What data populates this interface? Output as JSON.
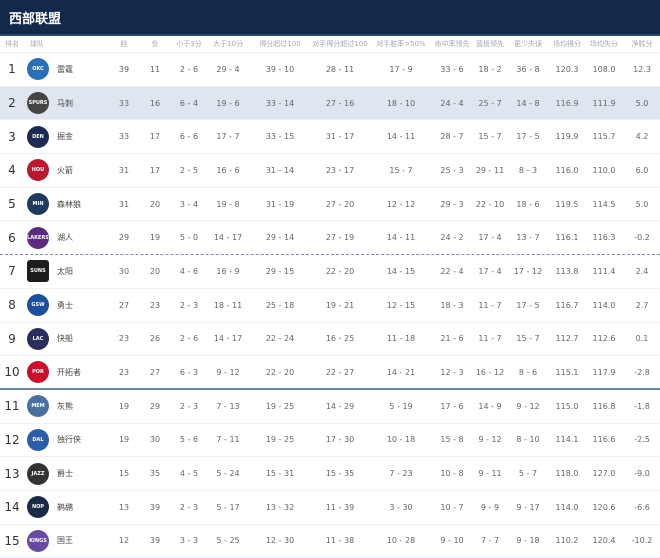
{
  "header": {
    "title": "西部联盟"
  },
  "columns": [
    "排名",
    "球队",
    "胜",
    "负",
    "小于3分",
    "大于10分",
    "得分超过100",
    "对手得分超过100",
    "对手胜率>50%",
    "命中率领先",
    "篮板领先",
    "更少失误",
    "场均得分",
    "场均失分",
    "净胜分"
  ],
  "highlight_color": "#dfe6ef",
  "header_color": "#13294b",
  "rows": [
    {
      "rank": "1",
      "team": "雷霆",
      "logo": {
        "mark": "OKC",
        "color": "#2a6fb5"
      },
      "w": "39",
      "l": "11",
      "c1": "2 - 6",
      "c2": "29 - 4",
      "c3": "39 - 10",
      "c4": "28 - 11",
      "c5": "17 - 9",
      "c6": "33 - 6",
      "c7": "18 - 2",
      "c8": "36 - 8",
      "ppg": "120.3",
      "opp": "108.0",
      "net": "12.3"
    },
    {
      "rank": "2",
      "team": "马刺",
      "logo": {
        "mark": "SPURS",
        "color": "#444"
      },
      "w": "33",
      "l": "16",
      "c1": "6 - 4",
      "c2": "19 - 6",
      "c3": "33 - 14",
      "c4": "27 - 16",
      "c5": "18 - 10",
      "c6": "24 - 4",
      "c7": "25 - 7",
      "c8": "14 - 8",
      "ppg": "116.9",
      "opp": "111.9",
      "net": "5.0"
    },
    {
      "rank": "3",
      "team": "掘金",
      "logo": {
        "mark": "DEN",
        "color": "#1d2b52"
      },
      "w": "33",
      "l": "17",
      "c1": "6 - 6",
      "c2": "17 - 7",
      "c3": "33 - 15",
      "c4": "31 - 17",
      "c5": "14 - 11",
      "c6": "28 - 7",
      "c7": "15 - 7",
      "c8": "17 - 5",
      "ppg": "119.9",
      "opp": "115.7",
      "net": "4.2"
    },
    {
      "rank": "4",
      "team": "火箭",
      "logo": {
        "mark": "HOU",
        "color": "#b8192f"
      },
      "w": "31",
      "l": "17",
      "c1": "2 - 5",
      "c2": "16 - 6",
      "c3": "31 - 14",
      "c4": "23 - 17",
      "c5": "15 - 7",
      "c6": "25 - 3",
      "c7": "29 - 11",
      "c8": "8 - 3",
      "ppg": "116.0",
      "opp": "110.0",
      "net": "6.0"
    },
    {
      "rank": "5",
      "team": "森林狼",
      "logo": {
        "mark": "MIN",
        "color": "#1f3b5c"
      },
      "w": "31",
      "l": "20",
      "c1": "3 - 4",
      "c2": "19 - 8",
      "c3": "31 - 19",
      "c4": "27 - 20",
      "c5": "12 - 12",
      "c6": "29 - 3",
      "c7": "22 - 10",
      "c8": "18 - 6",
      "ppg": "119.5",
      "opp": "114.5",
      "net": "5.0"
    },
    {
      "rank": "6",
      "team": "湖人",
      "logo": {
        "mark": "LAKERS",
        "color": "#5b2b82"
      },
      "w": "29",
      "l": "19",
      "c1": "5 - 0",
      "c2": "14 - 17",
      "c3": "29 - 14",
      "c4": "27 - 19",
      "c5": "14 - 11",
      "c6": "24 - 2",
      "c7": "17 - 4",
      "c8": "13 - 7",
      "ppg": "116.1",
      "opp": "116.3",
      "net": "-0.2"
    },
    {
      "rank": "7",
      "team": "太阳",
      "logo": {
        "mark": "SUNS",
        "color": "#1d1d1d"
      },
      "w": "30",
      "l": "20",
      "c1": "4 - 6",
      "c2": "16 - 9",
      "c3": "29 - 15",
      "c4": "22 - 20",
      "c5": "14 - 15",
      "c6": "22 - 4",
      "c7": "17 - 4",
      "c8": "17 - 12",
      "ppg": "113.8",
      "opp": "111.4",
      "net": "2.4"
    },
    {
      "rank": "8",
      "team": "勇士",
      "logo": {
        "mark": "GSW",
        "color": "#1d4f9c"
      },
      "w": "27",
      "l": "23",
      "c1": "2 - 3",
      "c2": "18 - 11",
      "c3": "25 - 18",
      "c4": "19 - 21",
      "c5": "12 - 15",
      "c6": "18 - 3",
      "c7": "11 - 7",
      "c8": "17 - 5",
      "ppg": "116.7",
      "opp": "114.0",
      "net": "2.7"
    },
    {
      "rank": "9",
      "team": "快船",
      "logo": {
        "mark": "LAC",
        "color": "#2b2d5c"
      },
      "w": "23",
      "l": "26",
      "c1": "2 - 6",
      "c2": "14 - 17",
      "c3": "22 - 24",
      "c4": "16 - 25",
      "c5": "11 - 18",
      "c6": "21 - 6",
      "c7": "11 - 7",
      "c8": "15 - 7",
      "ppg": "112.7",
      "opp": "112.6",
      "net": "0.1"
    },
    {
      "rank": "10",
      "team": "开拓者",
      "logo": {
        "mark": "POR",
        "color": "#c8102e"
      },
      "w": "23",
      "l": "27",
      "c1": "6 - 3",
      "c2": "9 - 12",
      "c3": "22 - 20",
      "c4": "22 - 27",
      "c5": "14 - 21",
      "c6": "12 - 3",
      "c7": "16 - 12",
      "c8": "8 - 6",
      "ppg": "115.1",
      "opp": "117.9",
      "net": "-2.8"
    },
    {
      "rank": "11",
      "team": "灰熊",
      "logo": {
        "mark": "MEM",
        "color": "#4a6fa0"
      },
      "w": "19",
      "l": "29",
      "c1": "2 - 3",
      "c2": "7 - 13",
      "c3": "19 - 25",
      "c4": "14 - 29",
      "c5": "5 - 19",
      "c6": "17 - 6",
      "c7": "14 - 9",
      "c8": "9 - 12",
      "ppg": "115.0",
      "opp": "116.8",
      "net": "-1.8"
    },
    {
      "rank": "12",
      "team": "独行侠",
      "logo": {
        "mark": "DAL",
        "color": "#2a5ea8"
      },
      "w": "19",
      "l": "30",
      "c1": "5 - 6",
      "c2": "7 - 11",
      "c3": "19 - 25",
      "c4": "17 - 30",
      "c5": "10 - 18",
      "c6": "15 - 8",
      "c7": "9 - 12",
      "c8": "8 - 10",
      "ppg": "114.1",
      "opp": "116.6",
      "net": "-2.5"
    },
    {
      "rank": "13",
      "team": "爵士",
      "logo": {
        "mark": "JAZZ",
        "color": "#333"
      },
      "w": "15",
      "l": "35",
      "c1": "4 - 5",
      "c2": "5 - 24",
      "c3": "15 - 31",
      "c4": "15 - 35",
      "c5": "7 - 23",
      "c6": "10 - 8",
      "c7": "9 - 11",
      "c8": "5 - 7",
      "ppg": "118.0",
      "opp": "127.0",
      "net": "-9.0"
    },
    {
      "rank": "14",
      "team": "鹈鹕",
      "logo": {
        "mark": "NOP",
        "color": "#1a2a47"
      },
      "w": "13",
      "l": "39",
      "c1": "2 - 3",
      "c2": "5 - 17",
      "c3": "13 - 32",
      "c4": "11 - 39",
      "c5": "3 - 30",
      "c6": "10 - 7",
      "c7": "9 - 9",
      "c8": "9 - 17",
      "ppg": "114.0",
      "opp": "120.6",
      "net": "-6.6"
    },
    {
      "rank": "15",
      "team": "国王",
      "logo": {
        "mark": "KINGS",
        "color": "#6a4aa0"
      },
      "w": "12",
      "l": "39",
      "c1": "3 - 3",
      "c2": "5 - 25",
      "c3": "12 - 30",
      "c4": "11 - 38",
      "c5": "10 - 28",
      "c6": "9 - 10",
      "c7": "7 - 7",
      "c8": "9 - 18",
      "ppg": "110.2",
      "opp": "120.4",
      "net": "-10.2"
    }
  ]
}
